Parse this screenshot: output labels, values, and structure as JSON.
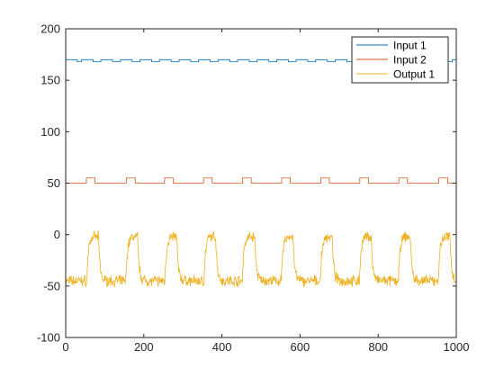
{
  "chart_data": {
    "type": "line",
    "title": "",
    "xlabel": "",
    "ylabel": "",
    "xlim": [
      0,
      1000
    ],
    "ylim": [
      -100,
      200
    ],
    "xticks": [
      0,
      200,
      400,
      600,
      800,
      1000
    ],
    "yticks": [
      -100,
      -50,
      0,
      50,
      100,
      150,
      200
    ],
    "xtick_labels": [
      "0",
      "200",
      "400",
      "600",
      "800",
      "1000"
    ],
    "ytick_labels": [
      "-100",
      "-50",
      "0",
      "50",
      "100",
      "150",
      "200"
    ],
    "grid": false,
    "legend_placement": "top-right",
    "series": [
      {
        "name": "Input 1",
        "color": "#0072BD",
        "pulse": {
          "low": 168,
          "high": 170,
          "high_intervals": [
            [
              0,
              30
            ],
            [
              40,
              70
            ],
            [
              90,
              120
            ],
            [
              140,
              170
            ],
            [
              190,
              220
            ],
            [
              240,
              270
            ],
            [
              290,
              320
            ],
            [
              340,
              370
            ],
            [
              390,
              420
            ],
            [
              440,
              470
            ],
            [
              490,
              520
            ],
            [
              540,
              570
            ],
            [
              590,
              620
            ],
            [
              640,
              670
            ],
            [
              690,
              720
            ],
            [
              740,
              770
            ],
            [
              790,
              820
            ],
            [
              840,
              870
            ],
            [
              890,
              920
            ],
            [
              940,
              970
            ],
            [
              990,
              1000
            ]
          ]
        }
      },
      {
        "name": "Input 2",
        "color": "#D95319",
        "pulse": {
          "low": 50,
          "high": 55,
          "high_intervals": [
            [
              53,
              75
            ],
            [
              155,
              178
            ],
            [
              253,
              275
            ],
            [
              353,
              375
            ],
            [
              453,
              475
            ],
            [
              553,
              575
            ],
            [
              653,
              675
            ],
            [
              753,
              775
            ],
            [
              853,
              875
            ],
            [
              955,
              978
            ]
          ]
        }
      },
      {
        "name": "Output 1",
        "color": "#EDB120",
        "pulse": {
          "low": -45,
          "high": -2,
          "high_intervals": [
            [
              55,
              85
            ],
            [
              155,
              185
            ],
            [
              255,
              285
            ],
            [
              355,
              385
            ],
            [
              453,
              485
            ],
            [
              553,
              583
            ],
            [
              653,
              683
            ],
            [
              753,
              783
            ],
            [
              853,
              883
            ],
            [
              955,
              985
            ]
          ]
        },
        "noise_amplitude": 4
      }
    ]
  }
}
